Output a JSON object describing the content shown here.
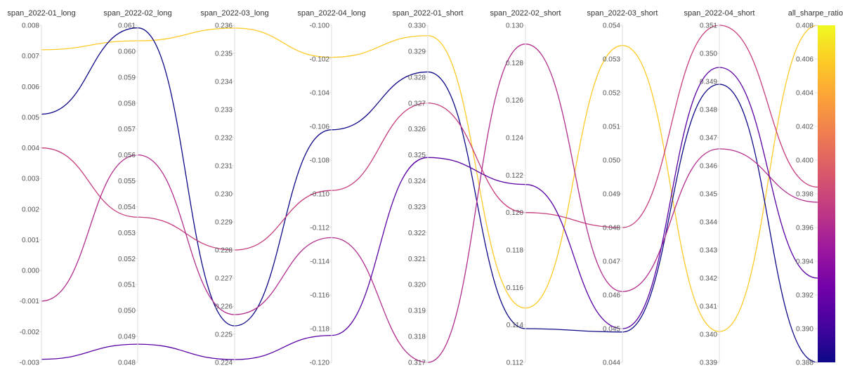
{
  "chart_data": {
    "type": "parallel_coordinates",
    "axes": [
      {
        "name": "span_2022-01_long",
        "min": -0.003,
        "max": 0.008,
        "ticks": [
          "0.008",
          "0.007",
          "0.006",
          "0.005",
          "0.004",
          "0.003",
          "0.002",
          "0.001",
          "0.000",
          "-0.001",
          "-0.002",
          "-0.003"
        ]
      },
      {
        "name": "span_2022-02_long",
        "min": 0.048,
        "max": 0.061,
        "ticks": [
          "0.061",
          "0.060",
          "0.059",
          "0.058",
          "0.057",
          "0.056",
          "0.055",
          "0.054",
          "0.053",
          "0.052",
          "0.051",
          "0.050",
          "0.049",
          "0.048"
        ]
      },
      {
        "name": "span_2022-03_long",
        "min": 0.224,
        "max": 0.236,
        "ticks": [
          "0.236",
          "0.235",
          "0.234",
          "0.233",
          "0.232",
          "0.231",
          "0.230",
          "0.229",
          "0.228",
          "0.227",
          "0.226",
          "0.225",
          "0.224"
        ]
      },
      {
        "name": "span_2022-04_long",
        "min": -0.12,
        "max": -0.1,
        "ticks": [
          "-0.100",
          "-0.102",
          "-0.104",
          "-0.106",
          "-0.108",
          "-0.110",
          "-0.112",
          "-0.114",
          "-0.116",
          "-0.118",
          "-0.120"
        ]
      },
      {
        "name": "span_2022-01_short",
        "min": 0.317,
        "max": 0.33,
        "ticks": [
          "0.330",
          "0.329",
          "0.328",
          "0.327",
          "0.326",
          "0.325",
          "0.324",
          "0.323",
          "0.322",
          "0.321",
          "0.320",
          "0.319",
          "0.318",
          "0.317"
        ]
      },
      {
        "name": "span_2022-02_short",
        "min": 0.112,
        "max": 0.13,
        "ticks": [
          "0.130",
          "0.128",
          "0.126",
          "0.124",
          "0.122",
          "0.120",
          "0.118",
          "0.116",
          "0.114",
          "0.112"
        ]
      },
      {
        "name": "span_2022-03_short",
        "min": 0.044,
        "max": 0.054,
        "ticks": [
          "0.054",
          "0.053",
          "0.052",
          "0.051",
          "0.050",
          "0.049",
          "0.048",
          "0.047",
          "0.046",
          "0.045",
          "0.044"
        ]
      },
      {
        "name": "span_2022-04_short",
        "min": 0.339,
        "max": 0.351,
        "ticks": [
          "0.351",
          "0.350",
          "0.349",
          "0.348",
          "0.347",
          "0.346",
          "0.345",
          "0.344",
          "0.343",
          "0.342",
          "0.341",
          "0.340",
          "0.339"
        ]
      }
    ],
    "color_axis": {
      "name": "all_sharpe_ratio",
      "min": 0.388,
      "max": 0.408,
      "ticks": [
        "0.408",
        "0.406",
        "0.404",
        "0.402",
        "0.400",
        "0.398",
        "0.396",
        "0.394",
        "0.392",
        "0.390",
        "0.388"
      ],
      "colorscale": [
        "#0d0887",
        "#46039f",
        "#7201a8",
        "#9c179e",
        "#bd3786",
        "#d8576b",
        "#ed7953",
        "#fb9f3a",
        "#fdca26",
        "#f0f921"
      ]
    },
    "series": [
      {
        "color": "#fdca26",
        "values": [
          0.0072,
          0.0604,
          0.2359,
          -0.1019,
          0.3296,
          0.1149,
          0.0534,
          0.3401,
          0.408
        ]
      },
      {
        "color": "#0d0887",
        "values": [
          0.0051,
          0.0609,
          0.2253,
          -0.1062,
          0.3282,
          0.1138,
          0.0449,
          0.3489,
          0.388
        ]
      },
      {
        "color": "#c63c7d",
        "values": [
          0.004,
          0.0536,
          0.228,
          -0.1098,
          0.327,
          0.12,
          0.048,
          0.351,
          0.3984
        ]
      },
      {
        "color": "#b22d8d",
        "values": [
          -0.001,
          0.056,
          0.2257,
          -0.1126,
          0.317,
          0.129,
          0.0461,
          0.3466,
          0.3975
        ]
      },
      {
        "color": "#5a02a3",
        "values": [
          -0.0029,
          0.0487,
          0.2241,
          -0.1184,
          0.3249,
          0.1215,
          0.045,
          0.3495,
          0.393
        ]
      }
    ]
  }
}
